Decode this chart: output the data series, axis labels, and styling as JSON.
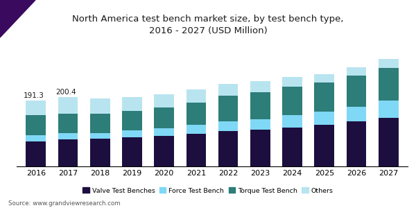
{
  "title": "North America test bench market size, by test bench type,\n2016 - 2027 (USD Million)",
  "years": [
    2016,
    2017,
    2018,
    2019,
    2020,
    2021,
    2022,
    2023,
    2024,
    2025,
    2026,
    2027
  ],
  "categories": [
    "Valve Test Benches",
    "Force Test Bench",
    "Torque Test Bench",
    "Others"
  ],
  "colors": [
    "#1c0f3f",
    "#7fd8f5",
    "#2d7d78",
    "#b8e4f0"
  ],
  "data": {
    "Valve Test Benches": [
      72,
      78,
      80,
      84,
      88,
      95,
      102,
      106,
      112,
      120,
      130,
      140
    ],
    "Force Test Bench": [
      18,
      18,
      17,
      20,
      23,
      26,
      28,
      30,
      36,
      38,
      42,
      50
    ],
    "Torque Test Bench": [
      58,
      56,
      56,
      57,
      60,
      64,
      74,
      78,
      82,
      85,
      90,
      95
    ],
    "Others": [
      43,
      48,
      44,
      40,
      38,
      38,
      34,
      32,
      28,
      24,
      24,
      25
    ]
  },
  "annotations": {
    "2016": "191.3",
    "2017": "200.4"
  },
  "source": "Source: www.grandviewresearch.com",
  "ylim": [
    0,
    360
  ],
  "bar_width": 0.62,
  "background_color": "#ffffff",
  "title_color": "#1a1a1a",
  "title_fontsize": 9.5,
  "header_bar_color": "#4a1060",
  "header_triangle_color": "#3a0a5e"
}
